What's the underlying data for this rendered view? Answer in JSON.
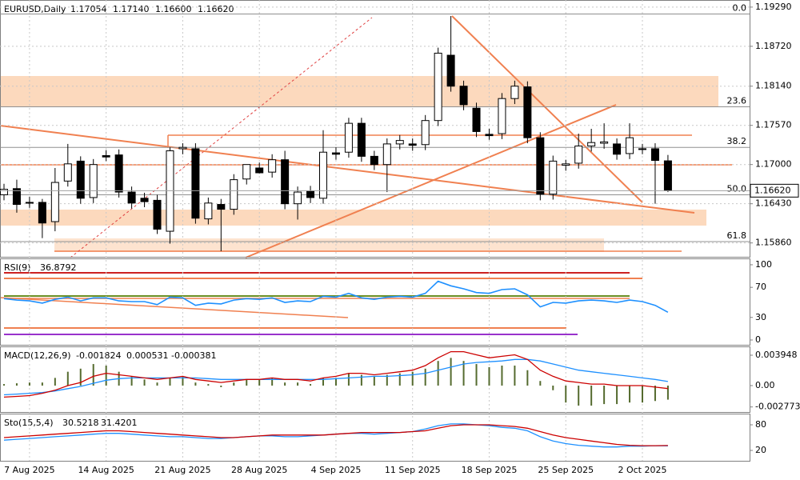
{
  "chart_data": [
    {
      "type": "candlestick",
      "title": "EURUSD,Daily",
      "readout": [
        "1.17054",
        "1.17140",
        "1.16600",
        "1.16620"
      ],
      "categories": [
        null,
        null,
        "7 Aug 2025",
        null,
        null,
        null,
        null,
        null,
        "14 Aug 2025",
        null,
        null,
        null,
        null,
        null,
        "21 Aug 2025",
        null,
        null,
        null,
        null,
        null,
        "28 Aug 2025",
        null,
        null,
        null,
        null,
        null,
        "4 Sep 2025",
        null,
        null,
        null,
        null,
        null,
        "11 Sep 2025",
        null,
        null,
        null,
        null,
        null,
        "18 Sep 2025",
        null,
        null,
        null,
        null,
        null,
        "25 Sep 2025",
        null,
        null,
        null,
        null,
        null,
        "2 Oct 2025",
        null,
        null
      ],
      "open": [
        1.1656,
        1.1665,
        1.1645,
        1.1645,
        1.1617,
        1.1676,
        1.1705,
        1.1652,
        1.1713,
        1.1714,
        1.166,
        1.1651,
        1.1648,
        1.1603,
        1.1723,
        1.1723,
        1.1621,
        1.1642,
        1.1635,
        1.1679,
        1.1695,
        1.1689,
        1.1707,
        1.1643,
        1.1661,
        1.1651,
        1.1717,
        1.1718,
        1.176,
        1.1712,
        1.17,
        1.173,
        1.173,
        1.1729,
        1.1764,
        1.1859,
        1.1814,
        1.1782,
        1.1744,
        1.1745,
        1.1796,
        1.1813,
        1.1739,
        1.1657,
        1.1699,
        1.1702,
        1.1727,
        1.1731,
        1.173,
        1.1716,
        1.1723,
        1.1723,
        1.17054
      ],
      "high": [
        1.1672,
        1.1678,
        1.1653,
        1.165,
        1.1695,
        1.173,
        1.1712,
        1.1708,
        1.1721,
        1.1722,
        1.1668,
        1.1659,
        1.1656,
        1.1725,
        1.1731,
        1.1731,
        1.1652,
        1.165,
        1.1686,
        1.17,
        1.1703,
        1.1715,
        1.172,
        1.1668,
        1.1669,
        1.175,
        1.1725,
        1.1768,
        1.1768,
        1.172,
        1.1738,
        1.1743,
        1.1738,
        1.1772,
        1.187,
        1.1916,
        1.1822,
        1.179,
        1.1752,
        1.1804,
        1.1822,
        1.1821,
        1.1747,
        1.1713,
        1.1707,
        1.1745,
        1.1752,
        1.176,
        1.1738,
        1.176,
        1.173,
        1.1731,
        1.1714
      ],
      "low": [
        1.1648,
        1.163,
        1.1637,
        1.1593,
        1.1603,
        1.1668,
        1.1643,
        1.1644,
        1.1705,
        1.1652,
        1.1636,
        1.1638,
        1.1599,
        1.1585,
        1.1715,
        1.1614,
        1.1613,
        1.1574,
        1.1627,
        1.1671,
        1.1687,
        1.1681,
        1.1635,
        1.162,
        1.1644,
        1.1643,
        1.1707,
        1.171,
        1.1704,
        1.1692,
        1.166,
        1.1722,
        1.172,
        1.1721,
        1.1756,
        1.1806,
        1.1779,
        1.174,
        1.1736,
        1.1737,
        1.1788,
        1.1731,
        1.1648,
        1.1649,
        1.1691,
        1.1694,
        1.1719,
        1.1723,
        1.1707,
        1.1708,
        1.1715,
        1.1643,
        1.166
      ],
      "close": [
        1.1664,
        1.1642,
        1.1644,
        1.1615,
        1.1674,
        1.1701,
        1.1651,
        1.17,
        1.1711,
        1.166,
        1.1644,
        1.1646,
        1.1606,
        1.172,
        1.1725,
        1.1622,
        1.1644,
        1.1635,
        1.1678,
        1.17,
        1.1688,
        1.1707,
        1.1643,
        1.166,
        1.1652,
        1.1718,
        1.1715,
        1.176,
        1.1712,
        1.17,
        1.173,
        1.1735,
        1.1728,
        1.1764,
        1.1862,
        1.1814,
        1.1787,
        1.1748,
        1.1742,
        1.1796,
        1.1814,
        1.1739,
        1.1657,
        1.1705,
        1.1701,
        1.1727,
        1.1732,
        1.1733,
        1.1715,
        1.1739,
        1.1722,
        1.1706,
        1.1662
      ],
      "up_color": "#ffffff",
      "down_color": "#000000",
      "ylim": [
        1.1567,
        1.1937
      ],
      "yticks": [
        {
          "value": 1.1929,
          "label": "1.19290"
        },
        {
          "value": 1.1872,
          "label": "1.18720"
        },
        {
          "value": 1.1814,
          "label": "1.18140"
        },
        {
          "value": 1.1757,
          "label": "1.17570"
        },
        {
          "value": 1.17,
          "label": "1.17000"
        },
        {
          "value": 1.1643,
          "label": "1.16430"
        },
        {
          "value": 1.1586,
          "label": "1.15860"
        }
      ],
      "fib_levels": [
        {
          "price": 1.1919,
          "label": "0.0"
        },
        {
          "price": 1.1784,
          "label": "23.6"
        },
        {
          "price": 1.1725,
          "label": "38.2"
        },
        {
          "price": 1.1656,
          "label": "50.0"
        },
        {
          "price": 1.1588,
          "label": "61.8"
        }
      ],
      "grid": true
    },
    {
      "type": "line",
      "title": "RSI(9)",
      "color": "#1e90ff",
      "values": [
        55,
        53,
        52,
        49,
        54,
        57,
        52,
        56,
        56,
        52,
        51,
        51,
        47,
        57,
        56,
        46,
        49,
        48,
        53,
        55,
        54,
        56,
        50,
        52,
        51,
        58,
        57,
        62,
        56,
        54,
        57,
        58,
        57,
        62,
        78,
        72,
        68,
        63,
        62,
        67,
        68,
        60,
        44,
        50,
        49,
        52,
        53,
        52,
        50,
        53,
        51,
        46,
        36.8792
      ],
      "ylim": [
        -6.4,
        107.4
      ],
      "yticks": [
        100,
        70,
        30,
        0
      ]
    },
    {
      "type": "macd",
      "title": "MACD(12,26,9)",
      "histogram": {
        "color": "#556b2f",
        "values": [
          0.0002,
          0.0003,
          0.0004,
          0.0004,
          0.001,
          0.0018,
          0.0022,
          0.0028,
          0.0026,
          0.0018,
          0.0012,
          0.0008,
          0.0004,
          0.001,
          0.0012,
          0.0004,
          0.0002,
          -0.0002,
          0.0004,
          0.0008,
          0.0008,
          0.001,
          0.0004,
          0.0004,
          0.0002,
          0.001,
          0.001,
          0.0016,
          0.0014,
          0.0012,
          0.0014,
          0.0016,
          0.0018,
          0.0022,
          0.0032,
          0.0036,
          0.0032,
          0.0028,
          0.0024,
          0.0026,
          0.0026,
          0.002,
          0.0006,
          -0.0006,
          -0.0022,
          -0.0026,
          -0.0026,
          -0.0024,
          -0.0024,
          -0.0022,
          -0.0022,
          -0.002,
          -0.001824
        ]
      },
      "series": [
        {
          "color": "#1e90ff",
          "values": [
            -0.0012,
            -0.0011,
            -0.001,
            -0.0009,
            -0.0007,
            -0.0004,
            -0.0001,
            0.0003,
            0.0007,
            0.0009,
            0.001,
            0.001,
            0.001,
            0.001,
            0.001,
            0.001,
            0.0009,
            0.0008,
            0.0008,
            0.0008,
            0.0008,
            0.0008,
            0.0008,
            0.0008,
            0.0008,
            0.0008,
            0.0009,
            0.001,
            0.0011,
            0.0012,
            0.0012,
            0.0013,
            0.0014,
            0.0016,
            0.002,
            0.0024,
            0.0028,
            0.003,
            0.0031,
            0.0032,
            0.0034,
            0.0034,
            0.0032,
            0.0028,
            0.0024,
            0.002,
            0.0018,
            0.0016,
            0.0014,
            0.0012,
            0.001,
            0.0008,
            0.000531
          ]
        },
        {
          "color": "#cc0000",
          "values": [
            -0.0015,
            -0.0014,
            -0.0013,
            -0.001,
            -0.0006,
            0,
            0.0004,
            0.0012,
            0.0016,
            0.0014,
            0.0012,
            0.001,
            0.0008,
            0.001,
            0.0012,
            0.0008,
            0.0006,
            0.0004,
            0.0006,
            0.0008,
            0.0008,
            0.001,
            0.0008,
            0.0008,
            0.0006,
            0.001,
            0.0012,
            0.0016,
            0.0016,
            0.0014,
            0.0016,
            0.0018,
            0.002,
            0.0026,
            0.0036,
            0.0044,
            0.0044,
            0.004,
            0.0036,
            0.0038,
            0.004,
            0.0034,
            0.002,
            0.0012,
            0.0006,
            0.0004,
            0.0002,
            0.0002,
            0,
            0,
            0,
            -0.0002,
            -0.000381
          ]
        }
      ],
      "ylim": [
        -0.003429,
        0.004987
      ],
      "yticks": [
        0.003948,
        {
          "value": 0,
          "label": "0.00"
        },
        -0.002773
      ]
    },
    {
      "type": "stochastic",
      "title": "Sto(15,5,4)",
      "series": [
        {
          "color": "#1e90ff",
          "values": [
            44,
            46,
            48,
            50,
            52,
            54,
            56,
            58,
            60,
            60,
            58,
            56,
            54,
            52,
            52,
            50,
            48,
            48,
            50,
            52,
            54,
            54,
            52,
            52,
            54,
            56,
            58,
            60,
            60,
            58,
            60,
            62,
            64,
            70,
            78,
            82,
            82,
            80,
            78,
            74,
            72,
            66,
            52,
            42,
            36,
            32,
            30,
            28,
            28,
            30,
            30,
            31,
            30.5218
          ]
        },
        {
          "color": "#cc0000",
          "values": [
            50,
            52,
            54,
            56,
            58,
            60,
            62,
            64,
            66,
            66,
            64,
            62,
            60,
            58,
            56,
            54,
            52,
            50,
            50,
            52,
            54,
            56,
            56,
            56,
            56,
            56,
            58,
            60,
            62,
            62,
            62,
            62,
            64,
            66,
            72,
            78,
            80,
            80,
            80,
            78,
            76,
            72,
            64,
            56,
            50,
            46,
            42,
            38,
            34,
            32,
            31,
            31,
            31.4201
          ]
        }
      ],
      "ylim": [
        -4.4,
        104.4
      ],
      "yticks": [
        80,
        20
      ]
    }
  ]
}
